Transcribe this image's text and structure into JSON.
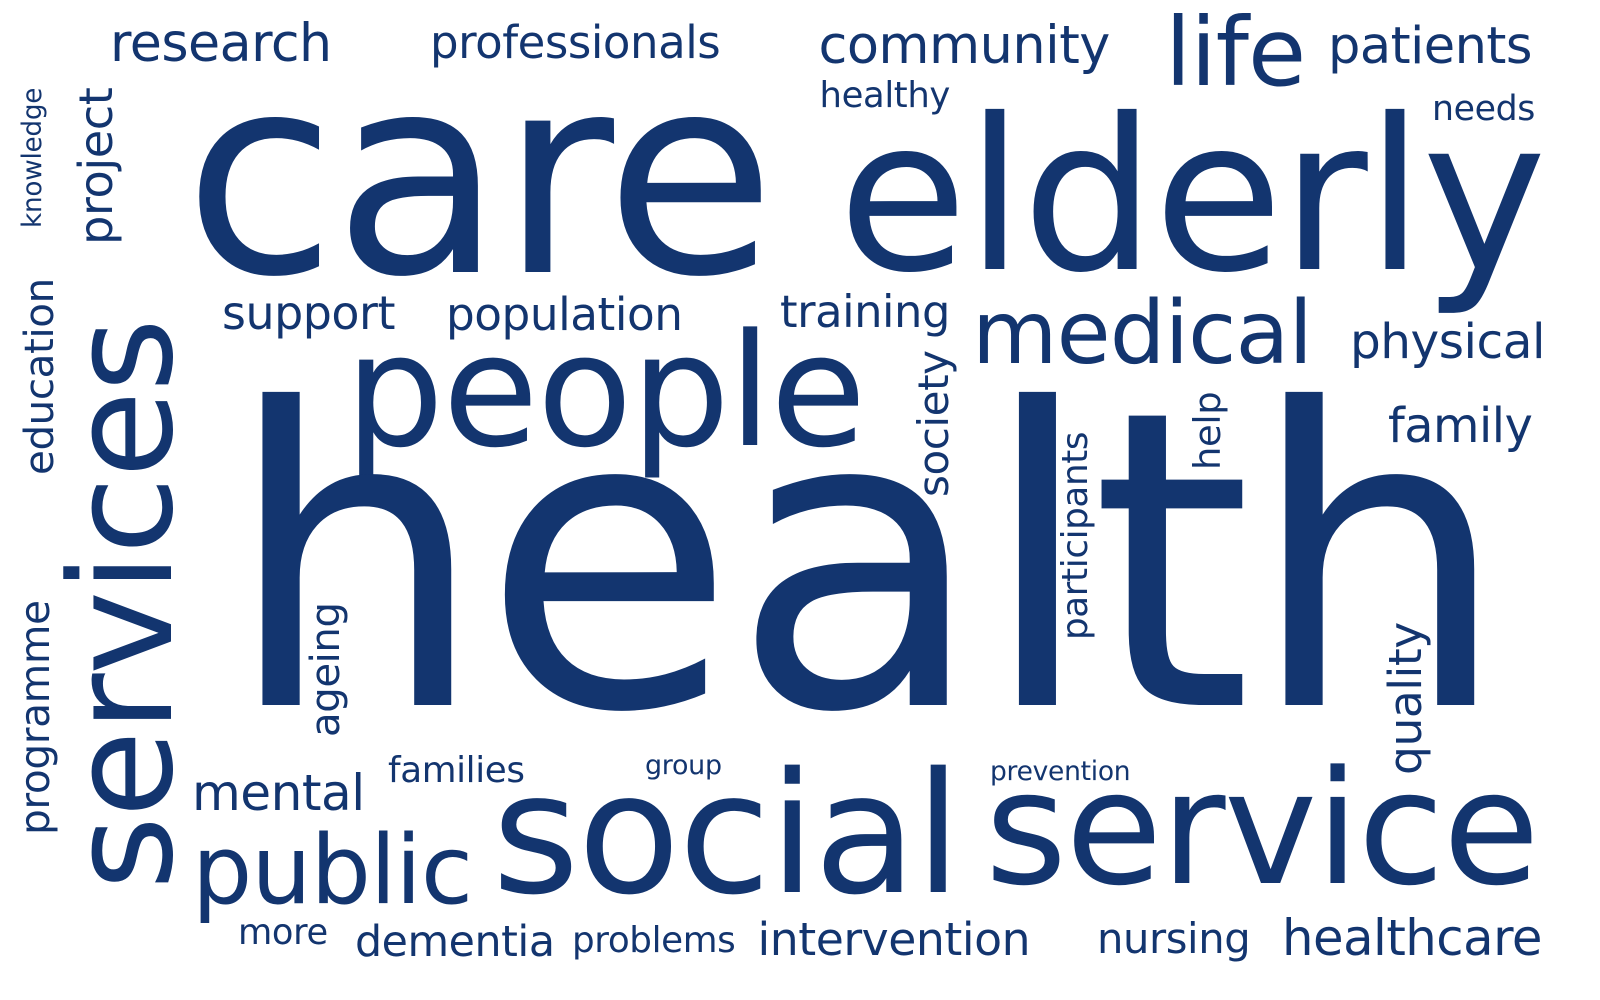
{
  "colors": {
    "text": "#13356f",
    "background": "#ffffff"
  },
  "words": {
    "research": "research",
    "professionals": "professionals",
    "community": "community",
    "life": "life",
    "patients": "patients",
    "healthy": "healthy",
    "needs": "needs",
    "care": "care",
    "elderly": "elderly",
    "knowledge": "knowledge",
    "project": "project",
    "support": "support",
    "population": "population",
    "training": "training",
    "medical": "medical",
    "physical": "physical",
    "people": "people",
    "family": "family",
    "education": "education",
    "services": "services",
    "society": "society",
    "help": "help",
    "health": "health",
    "participants": "participants",
    "programme": "programme",
    "ageing": "ageing",
    "quality": "quality",
    "mental": "mental",
    "families": "families",
    "group": "group",
    "prevention": "prevention",
    "public": "public",
    "social": "social",
    "service": "service",
    "more": "more",
    "dementia": "dementia",
    "problems": "problems",
    "intervention": "intervention",
    "nursing": "nursing",
    "healthcare": "healthcare"
  }
}
